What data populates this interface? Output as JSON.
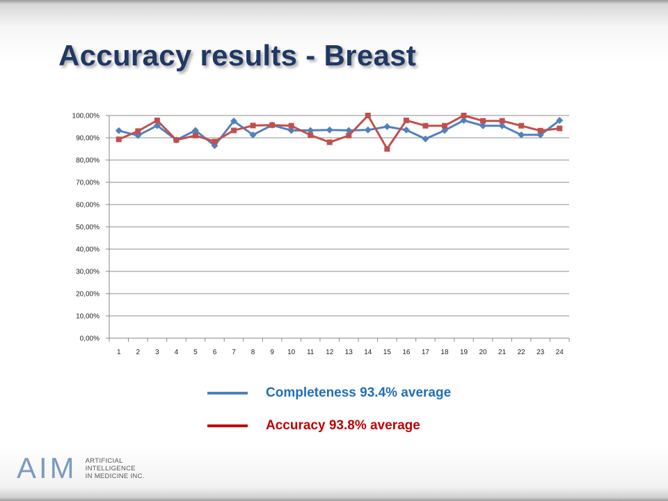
{
  "slide": {
    "title": "Accuracy results - Breast"
  },
  "legend": [
    {
      "label": "Completeness 93.4% average",
      "color": "#4f81bd",
      "text_color": "#1f6fb4"
    },
    {
      "label": "Accuracy  93.8% average",
      "color": "#c00000",
      "text_color": "#c00000"
    }
  ],
  "logo": {
    "mark": "AIM",
    "lines": [
      "ARTIFICIAL",
      "INTELLIGENCE",
      "IN MEDICINE INC."
    ]
  },
  "chart_data": {
    "type": "line",
    "x": [
      1,
      2,
      3,
      4,
      5,
      6,
      7,
      8,
      9,
      10,
      11,
      12,
      13,
      14,
      15,
      16,
      17,
      18,
      19,
      20,
      21,
      22,
      23,
      24
    ],
    "ylim": [
      0,
      100
    ],
    "yticks": [
      "0,00%",
      "10,00%",
      "20,00%",
      "30,00%",
      "40,00%",
      "50,00%",
      "60,00%",
      "70,00%",
      "80,00%",
      "90,00%",
      "100,00%"
    ],
    "grid": true,
    "series": [
      {
        "name": "Completeness",
        "color": "#4f81bd",
        "marker": "diamond",
        "values": [
          93.2,
          91.0,
          95.5,
          89.0,
          93.3,
          86.5,
          97.5,
          91.3,
          95.7,
          93.3,
          93.3,
          93.5,
          93.3,
          93.5,
          95.0,
          93.5,
          89.5,
          93.3,
          97.8,
          95.4,
          95.4,
          91.3,
          91.3,
          97.8
        ]
      },
      {
        "name": "Accuracy",
        "color": "#c0504d",
        "marker": "square",
        "values": [
          89.3,
          93.0,
          97.8,
          89.0,
          91.0,
          88.3,
          93.3,
          95.5,
          95.7,
          95.4,
          91.2,
          88.0,
          91.0,
          100.0,
          85.0,
          97.8,
          95.4,
          95.4,
          100.0,
          97.6,
          97.6,
          95.4,
          93.2,
          94.2
        ]
      }
    ]
  }
}
